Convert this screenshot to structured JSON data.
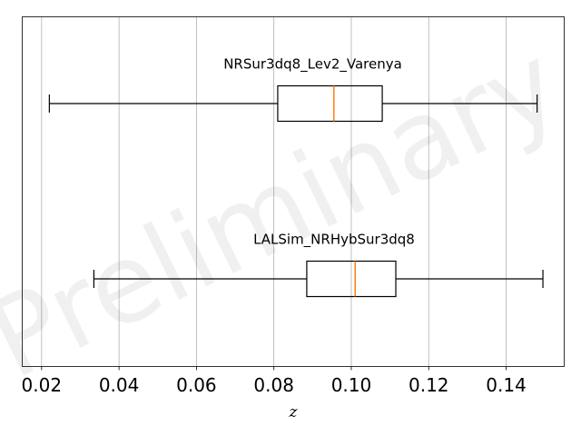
{
  "chart_data": {
    "type": "boxplot",
    "orientation": "horizontal",
    "xlabel": "z",
    "xlim": [
      0.015,
      0.155
    ],
    "xticks": [
      0.02,
      0.04,
      0.06,
      0.08,
      0.1,
      0.12,
      0.14
    ],
    "xtick_labels": [
      "0.02",
      "0.04",
      "0.06",
      "0.08",
      "0.10",
      "0.12",
      "0.14"
    ],
    "grid": "x-major",
    "watermark": "Preliminary",
    "median_color": "#ff7f0e",
    "box_color": "#000000",
    "series": [
      {
        "name": "NRSur3dq8_Lev2_Varenya",
        "whisker_low": 0.022,
        "q1": 0.081,
        "median": 0.0955,
        "q3": 0.108,
        "whisker_high": 0.148
      },
      {
        "name": "LALSim_NRHybSur3dq8",
        "whisker_low": 0.0335,
        "q1": 0.0885,
        "median": 0.101,
        "q3": 0.1115,
        "whisker_high": 0.1495
      }
    ]
  }
}
